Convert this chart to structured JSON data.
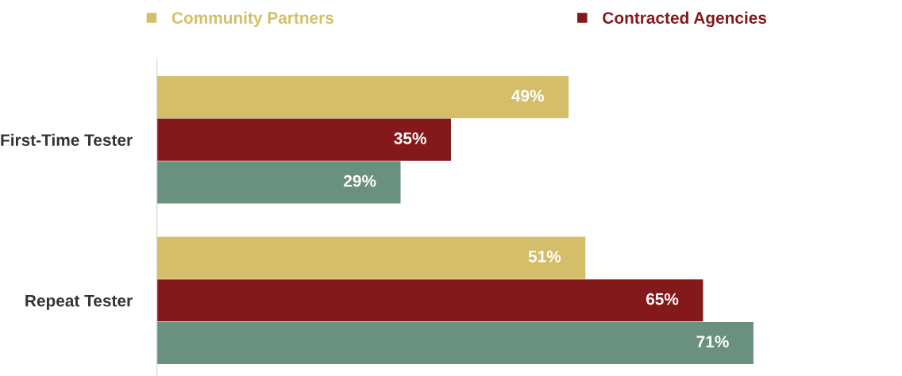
{
  "chart_data": {
    "type": "bar",
    "orientation": "horizontal",
    "categories": [
      "First-Time Tester",
      "Repeat Tester"
    ],
    "series": [
      {
        "name": "Community Partners",
        "color": "#d4be69",
        "values": [
          49,
          51
        ],
        "value_labels": [
          "49%",
          "51%"
        ]
      },
      {
        "name": "Contracted Agencies",
        "color": "#84191b",
        "values": [
          35,
          65
        ],
        "value_labels": [
          "35%",
          "65%"
        ]
      },
      {
        "color": "#6a9080",
        "values": [
          29,
          71
        ],
        "value_labels": [
          "29%",
          "71%"
        ]
      }
    ],
    "tick_labels": "y",
    "grid": false,
    "legend": "top"
  }
}
